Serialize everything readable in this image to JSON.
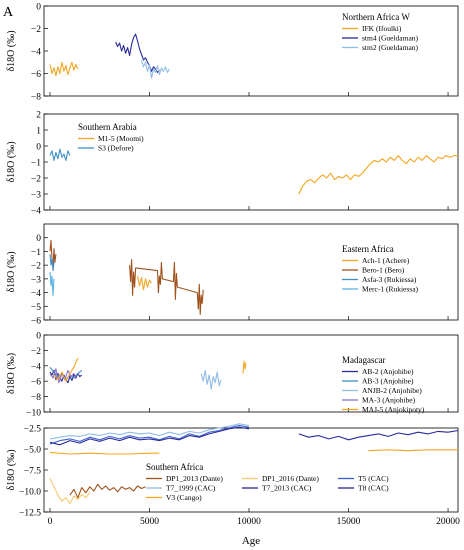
{
  "figure_label": "A",
  "xlabel": "Age",
  "x_ticks": [
    0,
    5000,
    10000,
    15000,
    20000
  ],
  "x_tick_labels": [
    "0",
    "5000",
    "10000",
    "15000",
    "20000"
  ],
  "xlim": [
    -300,
    20500
  ],
  "colors": {
    "orange": "#f5a623",
    "light_orange": "#f8c870",
    "brown": "#a0521c",
    "dark_blue": "#2a2a9c",
    "blue": "#3c5fcf",
    "light_blue": "#8fbce8",
    "steel_blue": "#3f8fc6",
    "purple": "#8c72c8",
    "sky": "#5ab4e6"
  },
  "chart_data": [
    {
      "type": "line",
      "region": "Northern Africa W",
      "ylabel": "δ18O (‰)",
      "ylim": [
        -8,
        0
      ],
      "y_ticks": [
        0,
        -2,
        -4,
        -6,
        -8
      ],
      "y_tick_labels": [
        "0",
        "−2",
        "−4",
        "−6",
        "−8"
      ],
      "legend_position": "top-right",
      "series": [
        {
          "name": "IFK (Ifoulki)",
          "color": "#f5a623",
          "x": [
            0,
            100,
            200,
            300,
            400,
            500,
            600,
            700,
            800,
            900,
            1000,
            1100,
            1200,
            1300,
            1400
          ],
          "y": [
            -5.2,
            -6.0,
            -5.5,
            -6.2,
            -5.4,
            -6.0,
            -5.0,
            -5.8,
            -5.3,
            -6.1,
            -5.5,
            -5.0,
            -5.7,
            -5.2,
            -5.6
          ]
        },
        {
          "name": "stm4 (Gueldaman)",
          "color": "#2a2a9c",
          "x": [
            3300,
            3400,
            3500,
            3600,
            3700,
            3800,
            3900,
            4000,
            4100,
            4200,
            4300,
            4400,
            4500,
            4600,
            4700,
            4800,
            4900,
            5000,
            5100,
            5200,
            5300,
            5400,
            5500
          ],
          "y": [
            -3.2,
            -3.6,
            -3.3,
            -4.0,
            -3.5,
            -4.2,
            -3.7,
            -4.4,
            -3.4,
            -2.8,
            -2.5,
            -3.1,
            -3.8,
            -4.3,
            -4.8,
            -4.6,
            -5.0,
            -5.3,
            -5.8,
            -5.4,
            -5.6,
            -5.9,
            -5.7
          ]
        },
        {
          "name": "stm2 (Gueldaman)",
          "color": "#8fbce8",
          "x": [
            4600,
            4700,
            4800,
            4900,
            5000,
            5100,
            5200,
            5300,
            5400,
            5500,
            5600,
            5700,
            5800,
            5900,
            6000
          ],
          "y": [
            -4.8,
            -5.4,
            -5.0,
            -5.8,
            -5.2,
            -6.4,
            -5.6,
            -5.9,
            -5.3,
            -6.1,
            -5.5,
            -5.8,
            -5.4,
            -5.9,
            -5.6
          ]
        }
      ]
    },
    {
      "type": "line",
      "region": "Southern Arabia",
      "ylabel": "δ18O (‰)",
      "ylim": [
        -4,
        2
      ],
      "y_ticks": [
        2,
        1,
        0,
        -1,
        -2,
        -3,
        -4
      ],
      "y_tick_labels": [
        "2",
        "1",
        "0",
        "−1",
        "−2",
        "−3",
        "−4"
      ],
      "legend_position": "top-left",
      "series": [
        {
          "name": "M1-5 (Moomi)",
          "color": "#f5a623",
          "x": [
            12500,
            12700,
            12900,
            13100,
            13300,
            13500,
            13700,
            13900,
            14100,
            14300,
            14500,
            14700,
            14900,
            15100,
            15300,
            15500,
            15700,
            15900,
            16100,
            16300,
            16500,
            16700,
            16900,
            17100,
            17300,
            17500,
            17700,
            17900,
            18100,
            18300,
            18500,
            18700,
            18900,
            19100,
            19300,
            19500,
            19700,
            19900,
            20100,
            20300,
            20500
          ],
          "y": [
            -3.0,
            -2.5,
            -2.2,
            -2.1,
            -2.3,
            -2.0,
            -1.8,
            -2.0,
            -1.7,
            -2.1,
            -1.9,
            -2.0,
            -1.8,
            -2.1,
            -1.8,
            -1.9,
            -1.7,
            -1.4,
            -1.1,
            -0.9,
            -1.0,
            -0.8,
            -1.0,
            -0.7,
            -0.9,
            -0.6,
            -0.9,
            -1.1,
            -0.8,
            -1.0,
            -0.7,
            -0.9,
            -0.6,
            -0.8,
            -1.0,
            -0.7,
            -0.8,
            -0.6,
            -0.7,
            -0.6,
            -0.6
          ]
        },
        {
          "name": "S3 (Defore)",
          "color": "#3f8fc6",
          "x": [
            0,
            100,
            200,
            300,
            400,
            500,
            600,
            700,
            800,
            900,
            1000
          ],
          "y": [
            -0.6,
            -0.3,
            -0.9,
            -0.4,
            -0.8,
            -0.2,
            -0.7,
            -0.5,
            -0.9,
            -0.3,
            -0.6
          ]
        }
      ]
    },
    {
      "type": "line",
      "region": "Eastern Africa",
      "ylabel": "δ18O (‰)",
      "ylim": [
        -6,
        1
      ],
      "y_ticks": [
        0,
        -1,
        -2,
        -3,
        -4,
        -5,
        -6
      ],
      "y_tick_labels": [
        "0",
        "−1",
        "−2",
        "−3",
        "−4",
        "−5",
        "−6"
      ],
      "legend_position": "right",
      "series": [
        {
          "name": "Ach-1 (Achere)",
          "color": "#f5a623",
          "x": [
            4400,
            4500,
            4600,
            4700,
            4800,
            4900,
            5000,
            5100
          ],
          "y": [
            -2.8,
            -3.5,
            -2.9,
            -3.8,
            -3.0,
            -3.6,
            -3.1,
            -3.3
          ]
        },
        {
          "name": "Bero-1 (Bero)",
          "color": "#a0521c",
          "x": [
            0,
            50,
            100,
            150,
            200,
            250,
            300,
            4000,
            4050,
            4100,
            4150,
            4200,
            4250,
            4300,
            5400,
            5450,
            5500,
            5550,
            5600,
            5650,
            6200,
            6250,
            6300,
            6350,
            6400,
            7400,
            7450,
            7500,
            7550,
            7600,
            7650,
            7700
          ],
          "y": [
            -1.0,
            -0.2,
            -1.5,
            -2.2,
            -0.8,
            -1.8,
            -1.2,
            -2.0,
            -3.2,
            -1.6,
            -4.2,
            -2.5,
            -3.6,
            -2.2,
            -2.4,
            -4.0,
            -2.8,
            -3.4,
            -1.8,
            -3.0,
            -3.2,
            -1.8,
            -4.5,
            -2.6,
            -3.6,
            -4.0,
            -5.2,
            -3.4,
            -5.6,
            -4.2,
            -4.8,
            -3.8
          ]
        },
        {
          "name": "Asfa-3 (Rukiessa)",
          "color": "#3f8fc6",
          "x": [
            0,
            50,
            100,
            150,
            200
          ],
          "y": [
            -1.2,
            -2.0,
            -1.5,
            -2.4,
            -1.8
          ]
        },
        {
          "name": "Merc-1 (Rukiessa)",
          "color": "#5ab4e6",
          "x": [
            0,
            50,
            100,
            150,
            200
          ],
          "y": [
            -2.5,
            -3.5,
            -2.8,
            -4.2,
            -3.0
          ]
        }
      ]
    },
    {
      "type": "line",
      "region": "Madagascar",
      "ylabel": "δ18O (‰)",
      "ylim": [
        -10,
        0
      ],
      "y_ticks": [
        0,
        -2,
        -4,
        -6,
        -8,
        -10
      ],
      "y_tick_labels": [
        "0",
        "−2",
        "−4",
        "−6",
        "−8",
        "−10"
      ],
      "legend_position": "right",
      "series": [
        {
          "name": "AB-2 (Anjohibe)",
          "color": "#2a2a9c",
          "x": [
            0,
            100,
            200,
            300,
            400,
            500,
            600,
            700,
            800,
            900,
            1000,
            1100,
            1200,
            1300,
            1400,
            1500,
            1600
          ],
          "y": [
            -4.8,
            -5.2,
            -4.6,
            -5.8,
            -5.0,
            -5.6,
            -6.0,
            -5.2,
            -5.8,
            -6.2,
            -5.4,
            -5.9,
            -5.1,
            -5.6,
            -5.0,
            -5.4,
            -5.2
          ]
        },
        {
          "name": "AB-3 (Anjohibe)",
          "color": "#3f8fc6",
          "x": [
            0,
            200,
            400,
            600,
            800,
            1000,
            1200,
            1400,
            1600
          ],
          "y": [
            -4.2,
            -4.8,
            -5.4,
            -5.0,
            -5.8,
            -5.2,
            -5.6,
            -5.0,
            -4.6
          ]
        },
        {
          "name": "ANJB-2 (Anjohibe)",
          "color": "#8fbce8",
          "x": [
            7600,
            7700,
            7800,
            7900,
            8000,
            8100,
            8200,
            8300,
            8400,
            8500,
            8600
          ],
          "y": [
            -5.0,
            -6.0,
            -4.6,
            -6.4,
            -5.2,
            -7.0,
            -5.4,
            -6.2,
            -4.8,
            -6.6,
            -5.8
          ]
        },
        {
          "name": "MA-3 (Anjohibe)",
          "color": "#8c72c8",
          "x": [
            0,
            150,
            300,
            450,
            600,
            750,
            900,
            1050,
            1200,
            1350
          ],
          "y": [
            -5.0,
            -5.6,
            -4.4,
            -6.2,
            -5.0,
            -5.8,
            -4.6,
            -5.4,
            -5.0,
            -5.6
          ]
        },
        {
          "name": "MAJ-5 (Anjokipoty)",
          "color": "#f5a623",
          "x": [
            200,
            400,
            600,
            800,
            1000,
            1200,
            1400,
            9700,
            9750,
            9800,
            9850
          ],
          "y": [
            -5.2,
            -5.8,
            -4.8,
            -6.0,
            -5.0,
            -4.2,
            -3.0,
            -5.0,
            -3.4,
            -4.4,
            -3.6
          ]
        }
      ]
    },
    {
      "type": "line",
      "region": "Southern Africa",
      "ylabel": "δ18O (‰)",
      "ylim": [
        -12.5,
        -2.5
      ],
      "y_ticks": [
        -2.5,
        -5,
        -7.5,
        -10,
        -12.5
      ],
      "y_tick_labels": [
        "−2.5",
        "−5.0",
        "−7.5",
        "−10.0",
        "−12.5"
      ],
      "legend_position": "bottom-right",
      "series": [
        {
          "name": "DP1_2013 (Dante)",
          "color": "#a0521c",
          "x": [
            1000,
            1200,
            1400,
            1600,
            1800,
            2000,
            2200,
            2400,
            2600,
            2800,
            3000,
            3200,
            3400,
            3600,
            3800,
            4000,
            4200,
            4400,
            4600,
            4800
          ],
          "y": [
            -10.5,
            -9.8,
            -10.8,
            -9.6,
            -10.2,
            -9.5,
            -10.0,
            -9.2,
            -9.8,
            -9.4,
            -9.9,
            -9.6,
            -10.1,
            -9.5,
            -9.8,
            -9.6,
            -10.0,
            -9.4,
            -9.7,
            -9.5
          ]
        },
        {
          "name": "DP1_2016 (Dante)",
          "color": "#f8c870",
          "x": [
            0,
            200,
            400,
            600,
            800,
            1000,
            1200,
            1400,
            1600,
            1800,
            2000
          ],
          "y": [
            -8.5,
            -9.5,
            -10.5,
            -11.2,
            -10.8,
            -11.5,
            -10.6,
            -11.0,
            -10.4,
            -10.8,
            -10.2
          ]
        },
        {
          "name": "T5 (CAC)",
          "color": "#3c5fcf",
          "x": [
            0,
            500,
            1000,
            1500,
            2000,
            2500,
            3000,
            3500,
            4000,
            4500,
            5000,
            5500,
            6000,
            6500,
            7000,
            7500,
            8000,
            8500,
            9000,
            9500,
            10000
          ],
          "y": [
            -4.4,
            -4.0,
            -3.8,
            -4.1,
            -3.6,
            -3.9,
            -3.5,
            -3.8,
            -3.4,
            -3.7,
            -3.6,
            -3.9,
            -3.5,
            -3.8,
            -3.2,
            -3.5,
            -3.0,
            -2.8,
            -2.5,
            -2.2,
            -2.4
          ]
        },
        {
          "name": "T7_1999 (CAC)",
          "color": "#8fbce8",
          "x": [
            0,
            500,
            1000,
            1500,
            2000,
            2500,
            3000,
            3500,
            4000,
            4500,
            5000,
            5500,
            6000,
            6500,
            7000,
            7500,
            8000,
            8500,
            9000,
            9500,
            10000
          ],
          "y": [
            -3.8,
            -3.6,
            -3.4,
            -3.5,
            -3.2,
            -3.4,
            -3.1,
            -3.3,
            -3.0,
            -3.2,
            -3.1,
            -3.4,
            -3.0,
            -3.3,
            -2.9,
            -3.1,
            -2.7,
            -2.5,
            -2.3,
            -2.0,
            -2.2
          ]
        },
        {
          "name": "T7_2013 (CAC)",
          "color": "#2a2a9c",
          "x": [
            12500,
            13000,
            13500,
            14000,
            14500,
            15000,
            15500,
            16000,
            16500,
            17000,
            17500,
            18000,
            18500,
            19000,
            19500,
            20000,
            20500
          ],
          "y": [
            -3.2,
            -3.6,
            -3.4,
            -3.8,
            -3.5,
            -3.9,
            -3.6,
            -3.4,
            -3.2,
            -3.5,
            -3.1,
            -3.3,
            -3.0,
            -3.2,
            -2.9,
            -3.0,
            -2.8
          ]
        },
        {
          "name": "T8 (CAC)",
          "color": "#2a2a9c",
          "x": [
            0,
            500,
            1000,
            1500,
            2000,
            2500,
            3000,
            3500,
            4000,
            4500,
            5000,
            5500,
            6000,
            6500,
            7000,
            7500,
            8000,
            8500,
            9000,
            9500,
            10000
          ],
          "y": [
            -4.2,
            -4.5,
            -4.0,
            -4.3,
            -3.8,
            -4.1,
            -3.7,
            -4.0,
            -3.6,
            -3.9,
            -3.8,
            -4.0,
            -3.7,
            -3.9,
            -3.4,
            -3.6,
            -3.2,
            -2.9,
            -2.6,
            -2.4,
            -2.6
          ]
        },
        {
          "name": "V3 (Cango)",
          "color": "#f5a623",
          "x": [
            0,
            1000,
            2000,
            3000,
            4000,
            5000,
            5500,
            16000,
            17000,
            18000,
            19000,
            20000,
            20500
          ],
          "y": [
            -5.4,
            -5.6,
            -5.5,
            -5.6,
            -5.6,
            -5.5,
            -5.5,
            -5.2,
            -5.1,
            -5.2,
            -5.1,
            -5.1,
            -5.1
          ]
        }
      ]
    }
  ]
}
